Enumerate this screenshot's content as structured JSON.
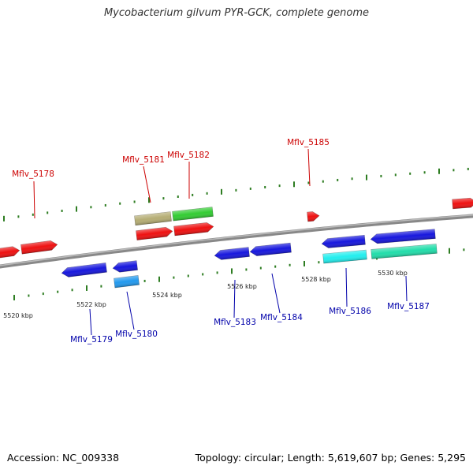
{
  "title": "Mycobacterium gilvum PYR-GCK, complete genome",
  "footer": {
    "accession": "Accession: NC_009338",
    "topology": "Topology: circular; Length: 5,619,607 bp; Genes: 5,295"
  },
  "colors": {
    "backbone": "#7a7a7a",
    "forward_label": "#cc0000",
    "reverse_label": "#0000aa",
    "tick": "#2e7d22",
    "red": "#ee1111",
    "olive": "#b5ad74",
    "green": "#33cc33",
    "blue": "#1717dd",
    "skyblue": "#2299ee",
    "cyan": "#22eeee",
    "seagreen": "#22ddaa"
  },
  "scale": {
    "unit": "kbp",
    "labels": [
      "5520 kbp",
      "5522 kbp",
      "5524 kbp",
      "5526 kbp",
      "5528 kbp",
      "5530 kbp"
    ]
  },
  "genes": {
    "forward": [
      {
        "label": "Mflv_5178",
        "color": "red"
      },
      {
        "label": "Mflv_5181",
        "color": "olive"
      },
      {
        "label": "Mflv_5182",
        "color": "green"
      },
      {
        "label": "Mflv_5185",
        "color": "red"
      }
    ],
    "reverse": [
      {
        "label": "Mflv_5179",
        "color": "blue"
      },
      {
        "label": "Mflv_5180",
        "color": "skyblue"
      },
      {
        "label": "Mflv_5183",
        "color": "blue"
      },
      {
        "label": "Mflv_5184",
        "color": "blue"
      },
      {
        "label": "Mflv_5186",
        "color": "cyan"
      },
      {
        "label": "Mflv_5187",
        "color": "seagreen"
      }
    ]
  }
}
